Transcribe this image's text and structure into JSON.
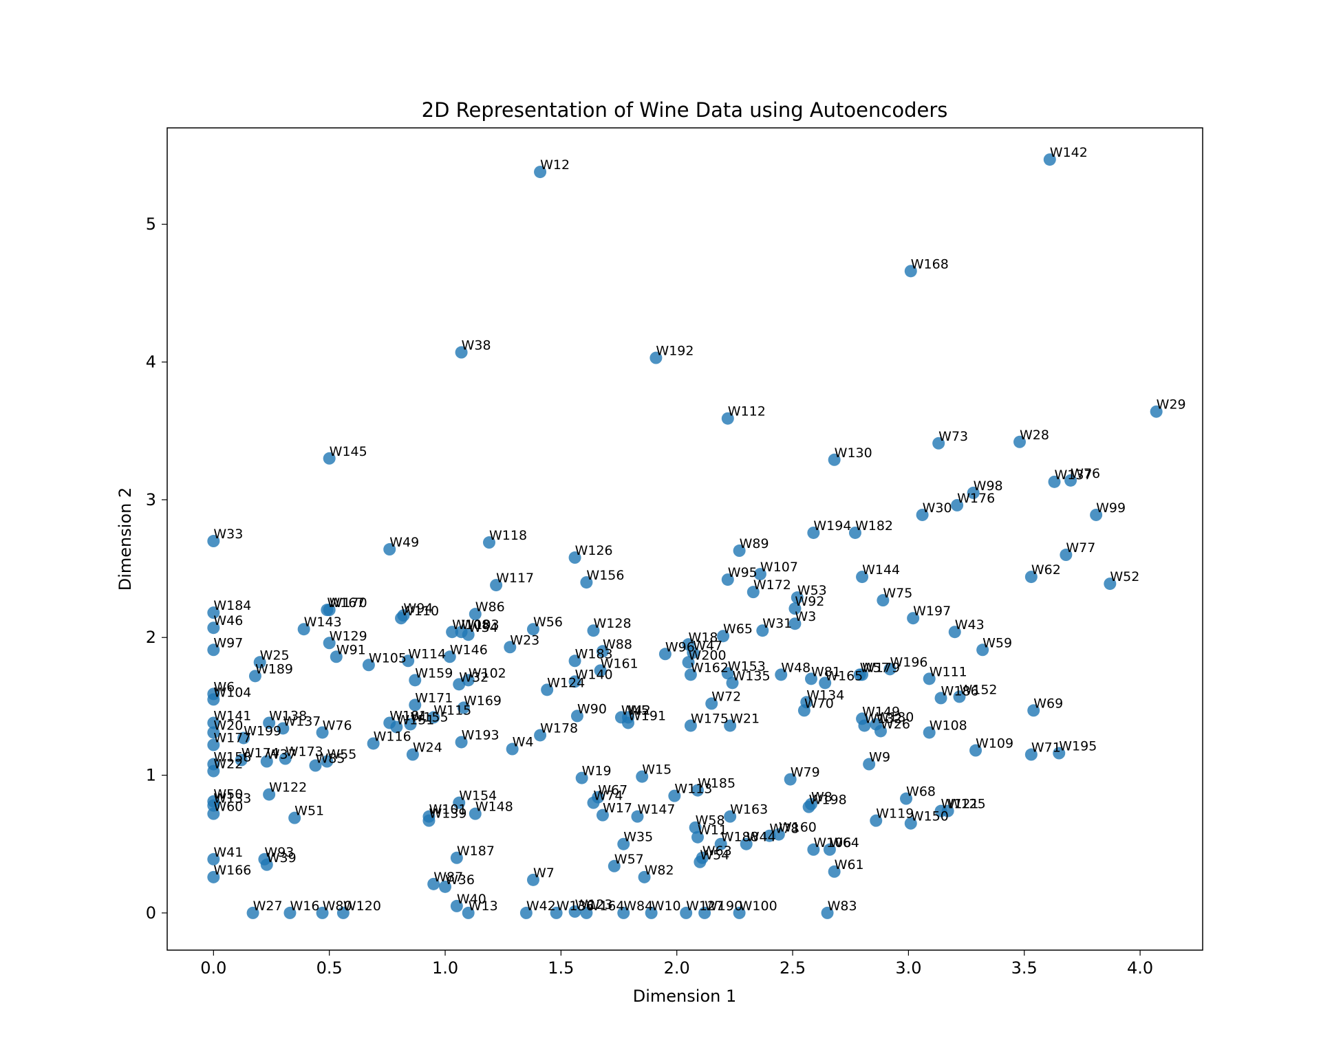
{
  "chart_data": {
    "type": "scatter",
    "title": "2D Representation of Wine Data using Autoencoders",
    "xlabel": "Dimension 1",
    "ylabel": "Dimension 2",
    "xlim": [
      -0.2,
      4.27
    ],
    "ylim": [
      -0.27,
      5.7
    ],
    "xticks": [
      0.0,
      0.5,
      1.0,
      1.5,
      2.0,
      2.5,
      3.0,
      3.5,
      4.0
    ],
    "yticks": [
      0,
      1,
      2,
      3,
      4,
      5
    ],
    "grid": false,
    "point_color": "#1f77b4",
    "points": [
      {
        "label": "W12",
        "x": 1.41,
        "y": 5.38
      },
      {
        "label": "W142",
        "x": 3.61,
        "y": 5.47
      },
      {
        "label": "W168",
        "x": 3.01,
        "y": 4.66
      },
      {
        "label": "W38",
        "x": 1.07,
        "y": 4.07
      },
      {
        "label": "W192",
        "x": 1.91,
        "y": 4.03
      },
      {
        "label": "W29",
        "x": 4.07,
        "y": 3.64
      },
      {
        "label": "W112",
        "x": 2.22,
        "y": 3.59
      },
      {
        "label": "W73",
        "x": 3.13,
        "y": 3.41
      },
      {
        "label": "W28",
        "x": 3.48,
        "y": 3.42
      },
      {
        "label": "W145",
        "x": 0.5,
        "y": 3.3
      },
      {
        "label": "W130",
        "x": 2.68,
        "y": 3.29
      },
      {
        "label": "W137",
        "x": 3.63,
        "y": 3.13
      },
      {
        "label": "W76",
        "x": 3.7,
        "y": 3.14
      },
      {
        "label": "W98",
        "x": 3.28,
        "y": 3.05
      },
      {
        "label": "W176",
        "x": 3.21,
        "y": 2.96
      },
      {
        "label": "W30",
        "x": 3.06,
        "y": 2.89
      },
      {
        "label": "W99",
        "x": 3.81,
        "y": 2.89
      },
      {
        "label": "W194",
        "x": 2.59,
        "y": 2.76
      },
      {
        "label": "W182",
        "x": 2.77,
        "y": 2.76
      },
      {
        "label": "W33",
        "x": 0.0,
        "y": 2.7
      },
      {
        "label": "W118",
        "x": 1.19,
        "y": 2.69
      },
      {
        "label": "W49",
        "x": 0.76,
        "y": 2.64
      },
      {
        "label": "W89",
        "x": 2.27,
        "y": 2.63
      },
      {
        "label": "W77",
        "x": 3.68,
        "y": 2.6
      },
      {
        "label": "W126",
        "x": 1.56,
        "y": 2.58
      },
      {
        "label": "W107",
        "x": 2.36,
        "y": 2.46
      },
      {
        "label": "W144",
        "x": 2.8,
        "y": 2.44
      },
      {
        "label": "W62",
        "x": 3.53,
        "y": 2.44
      },
      {
        "label": "W95",
        "x": 2.22,
        "y": 2.42
      },
      {
        "label": "W156",
        "x": 1.61,
        "y": 2.4
      },
      {
        "label": "W52",
        "x": 3.87,
        "y": 2.39
      },
      {
        "label": "W117",
        "x": 1.22,
        "y": 2.38
      },
      {
        "label": "W172",
        "x": 2.33,
        "y": 2.33
      },
      {
        "label": "W53",
        "x": 2.52,
        "y": 2.29
      },
      {
        "label": "W75",
        "x": 2.89,
        "y": 2.27
      },
      {
        "label": "W92",
        "x": 2.51,
        "y": 2.21
      },
      {
        "label": "W167",
        "x": 0.49,
        "y": 2.2
      },
      {
        "label": "W170",
        "x": 0.5,
        "y": 2.2
      },
      {
        "label": "W184",
        "x": 0.0,
        "y": 2.18
      },
      {
        "label": "W86",
        "x": 1.13,
        "y": 2.17
      },
      {
        "label": "W94",
        "x": 0.82,
        "y": 2.16
      },
      {
        "label": "W110",
        "x": 0.81,
        "y": 2.14
      },
      {
        "label": "W197",
        "x": 3.02,
        "y": 2.14
      },
      {
        "label": "W3",
        "x": 2.51,
        "y": 2.1
      },
      {
        "label": "W46",
        "x": 0.0,
        "y": 2.07
      },
      {
        "label": "W56",
        "x": 1.38,
        "y": 2.06
      },
      {
        "label": "W143",
        "x": 0.39,
        "y": 2.06
      },
      {
        "label": "W31",
        "x": 2.37,
        "y": 2.05
      },
      {
        "label": "W128",
        "x": 1.64,
        "y": 2.05
      },
      {
        "label": "W43",
        "x": 3.2,
        "y": 2.04
      },
      {
        "label": "W108",
        "x": 1.03,
        "y": 2.04
      },
      {
        "label": "W103",
        "x": 1.07,
        "y": 2.04
      },
      {
        "label": "W34",
        "x": 1.1,
        "y": 2.02
      },
      {
        "label": "W65",
        "x": 2.2,
        "y": 2.01
      },
      {
        "label": "W129",
        "x": 0.5,
        "y": 1.96
      },
      {
        "label": "W18",
        "x": 2.05,
        "y": 1.95
      },
      {
        "label": "W23",
        "x": 1.28,
        "y": 1.93
      },
      {
        "label": "W59",
        "x": 3.32,
        "y": 1.91
      },
      {
        "label": "W97",
        "x": 0.0,
        "y": 1.91
      },
      {
        "label": "W88",
        "x": 1.68,
        "y": 1.9
      },
      {
        "label": "W47",
        "x": 2.07,
        "y": 1.89
      },
      {
        "label": "W96",
        "x": 1.95,
        "y": 1.88
      },
      {
        "label": "W91",
        "x": 0.53,
        "y": 1.86
      },
      {
        "label": "W146",
        "x": 1.02,
        "y": 1.86
      },
      {
        "label": "W114",
        "x": 0.84,
        "y": 1.83
      },
      {
        "label": "W183",
        "x": 1.56,
        "y": 1.83
      },
      {
        "label": "W25",
        "x": 0.2,
        "y": 1.82
      },
      {
        "label": "W200",
        "x": 2.05,
        "y": 1.82
      },
      {
        "label": "W105",
        "x": 0.67,
        "y": 1.8
      },
      {
        "label": "W196",
        "x": 2.92,
        "y": 1.77
      },
      {
        "label": "W161",
        "x": 1.67,
        "y": 1.76
      },
      {
        "label": "W153",
        "x": 2.22,
        "y": 1.74
      },
      {
        "label": "W48",
        "x": 2.45,
        "y": 1.73
      },
      {
        "label": "W162",
        "x": 2.06,
        "y": 1.73
      },
      {
        "label": "W57",
        "x": 2.79,
        "y": 1.73
      },
      {
        "label": "W179",
        "x": 2.8,
        "y": 1.73
      },
      {
        "label": "W189",
        "x": 0.18,
        "y": 1.72
      },
      {
        "label": "W81",
        "x": 2.58,
        "y": 1.7
      },
      {
        "label": "W111",
        "x": 3.09,
        "y": 1.7
      },
      {
        "label": "W159",
        "x": 0.87,
        "y": 1.69
      },
      {
        "label": "W102",
        "x": 1.1,
        "y": 1.69
      },
      {
        "label": "W140",
        "x": 1.56,
        "y": 1.68
      },
      {
        "label": "W135",
        "x": 2.24,
        "y": 1.67
      },
      {
        "label": "W165",
        "x": 2.64,
        "y": 1.67
      },
      {
        "label": "W32",
        "x": 1.06,
        "y": 1.66
      },
      {
        "label": "W124",
        "x": 1.44,
        "y": 1.62
      },
      {
        "label": "W6",
        "x": 0.0,
        "y": 1.59
      },
      {
        "label": "W152",
        "x": 3.22,
        "y": 1.57
      },
      {
        "label": "W186",
        "x": 3.14,
        "y": 1.56
      },
      {
        "label": "W104",
        "x": 0.0,
        "y": 1.55
      },
      {
        "label": "W134",
        "x": 2.56,
        "y": 1.53
      },
      {
        "label": "W72",
        "x": 2.15,
        "y": 1.52
      },
      {
        "label": "W171",
        "x": 0.87,
        "y": 1.51
      },
      {
        "label": "W169",
        "x": 1.08,
        "y": 1.49
      },
      {
        "label": "W70",
        "x": 2.55,
        "y": 1.47
      },
      {
        "label": "W69",
        "x": 3.54,
        "y": 1.47
      },
      {
        "label": "W90",
        "x": 1.57,
        "y": 1.43
      },
      {
        "label": "W115",
        "x": 0.95,
        "y": 1.42
      },
      {
        "label": "W42",
        "x": 1.76,
        "y": 1.42
      },
      {
        "label": "W5",
        "x": 1.79,
        "y": 1.42
      },
      {
        "label": "W149",
        "x": 2.8,
        "y": 1.41
      },
      {
        "label": "W191",
        "x": 1.79,
        "y": 1.38
      },
      {
        "label": "W141",
        "x": 0.0,
        "y": 1.38
      },
      {
        "label": "W138",
        "x": 0.24,
        "y": 1.38
      },
      {
        "label": "W181",
        "x": 0.76,
        "y": 1.38
      },
      {
        "label": "W155",
        "x": 0.85,
        "y": 1.37
      },
      {
        "label": "W180",
        "x": 2.86,
        "y": 1.37
      },
      {
        "label": "W132",
        "x": 2.81,
        "y": 1.36
      },
      {
        "label": "W175",
        "x": 2.06,
        "y": 1.36
      },
      {
        "label": "W21",
        "x": 2.23,
        "y": 1.36
      },
      {
        "label": "W151",
        "x": 0.79,
        "y": 1.35
      },
      {
        "label": "W137b",
        "x": 0.3,
        "y": 1.34
      },
      {
        "label": "W26",
        "x": 2.88,
        "y": 1.32
      },
      {
        "label": "W20",
        "x": 0.0,
        "y": 1.31
      },
      {
        "label": "W76b",
        "x": 0.47,
        "y": 1.31
      },
      {
        "label": "W108b",
        "x": 3.09,
        "y": 1.31
      },
      {
        "label": "W178",
        "x": 1.41,
        "y": 1.29
      },
      {
        "label": "W199",
        "x": 0.13,
        "y": 1.27
      },
      {
        "label": "W193",
        "x": 1.07,
        "y": 1.24
      },
      {
        "label": "W116",
        "x": 0.69,
        "y": 1.23
      },
      {
        "label": "W177",
        "x": 0.0,
        "y": 1.22
      },
      {
        "label": "W4",
        "x": 1.29,
        "y": 1.19
      },
      {
        "label": "W109",
        "x": 3.29,
        "y": 1.18
      },
      {
        "label": "W195",
        "x": 3.65,
        "y": 1.16
      },
      {
        "label": "W24",
        "x": 0.86,
        "y": 1.15
      },
      {
        "label": "W71",
        "x": 3.53,
        "y": 1.15
      },
      {
        "label": "W173",
        "x": 0.31,
        "y": 1.12
      },
      {
        "label": "W174",
        "x": 0.12,
        "y": 1.11
      },
      {
        "label": "W37",
        "x": 0.23,
        "y": 1.1
      },
      {
        "label": "W55",
        "x": 0.49,
        "y": 1.1
      },
      {
        "label": "W158",
        "x": 0.0,
        "y": 1.08
      },
      {
        "label": "W9",
        "x": 2.83,
        "y": 1.08
      },
      {
        "label": "W85",
        "x": 0.44,
        "y": 1.07
      },
      {
        "label": "W22",
        "x": 0.0,
        "y": 1.03
      },
      {
        "label": "W15",
        "x": 1.85,
        "y": 0.99
      },
      {
        "label": "W19",
        "x": 1.59,
        "y": 0.98
      },
      {
        "label": "W79",
        "x": 2.49,
        "y": 0.97
      },
      {
        "label": "W185",
        "x": 2.09,
        "y": 0.89
      },
      {
        "label": "W122",
        "x": 0.24,
        "y": 0.86
      },
      {
        "label": "W113",
        "x": 1.99,
        "y": 0.85
      },
      {
        "label": "W67",
        "x": 1.66,
        "y": 0.84
      },
      {
        "label": "W68",
        "x": 2.99,
        "y": 0.83
      },
      {
        "label": "W50",
        "x": 0.0,
        "y": 0.81
      },
      {
        "label": "W154",
        "x": 1.06,
        "y": 0.8
      },
      {
        "label": "W74",
        "x": 1.64,
        "y": 0.8
      },
      {
        "label": "W8",
        "x": 2.58,
        "y": 0.79
      },
      {
        "label": "W133",
        "x": 0.0,
        "y": 0.78
      },
      {
        "label": "W198",
        "x": 2.57,
        "y": 0.77
      },
      {
        "label": "W121",
        "x": 3.14,
        "y": 0.74
      },
      {
        "label": "W125",
        "x": 3.17,
        "y": 0.74
      },
      {
        "label": "W148",
        "x": 1.13,
        "y": 0.72
      },
      {
        "label": "W60",
        "x": 0.0,
        "y": 0.72
      },
      {
        "label": "W17",
        "x": 1.68,
        "y": 0.71
      },
      {
        "label": "W147",
        "x": 1.83,
        "y": 0.7
      },
      {
        "label": "W163",
        "x": 2.23,
        "y": 0.7
      },
      {
        "label": "W101",
        "x": 0.93,
        "y": 0.7
      },
      {
        "label": "W51",
        "x": 0.35,
        "y": 0.69
      },
      {
        "label": "W119",
        "x": 2.86,
        "y": 0.67
      },
      {
        "label": "W139",
        "x": 0.93,
        "y": 0.67
      },
      {
        "label": "W150",
        "x": 3.01,
        "y": 0.65
      },
      {
        "label": "W58",
        "x": 2.08,
        "y": 0.62
      },
      {
        "label": "W160",
        "x": 2.44,
        "y": 0.57
      },
      {
        "label": "W78",
        "x": 2.4,
        "y": 0.56
      },
      {
        "label": "W11",
        "x": 2.09,
        "y": 0.55
      },
      {
        "label": "W188",
        "x": 2.19,
        "y": 0.5
      },
      {
        "label": "W44",
        "x": 2.3,
        "y": 0.5
      },
      {
        "label": "W35",
        "x": 1.77,
        "y": 0.5
      },
      {
        "label": "W106",
        "x": 2.59,
        "y": 0.46
      },
      {
        "label": "W64",
        "x": 2.66,
        "y": 0.46
      },
      {
        "label": "W187",
        "x": 1.05,
        "y": 0.4
      },
      {
        "label": "W63",
        "x": 2.11,
        "y": 0.4
      },
      {
        "label": "W41",
        "x": 0.0,
        "y": 0.39
      },
      {
        "label": "W93",
        "x": 0.22,
        "y": 0.39
      },
      {
        "label": "W54",
        "x": 2.1,
        "y": 0.37
      },
      {
        "label": "W39",
        "x": 0.23,
        "y": 0.35
      },
      {
        "label": "W57b",
        "x": 1.73,
        "y": 0.34
      },
      {
        "label": "W61",
        "x": 2.68,
        "y": 0.3
      },
      {
        "label": "W166",
        "x": 0.0,
        "y": 0.26
      },
      {
        "label": "W82",
        "x": 1.86,
        "y": 0.26
      },
      {
        "label": "W7",
        "x": 1.38,
        "y": 0.24
      },
      {
        "label": "W87",
        "x": 0.95,
        "y": 0.21
      },
      {
        "label": "W36",
        "x": 1.0,
        "y": 0.19
      },
      {
        "label": "W40",
        "x": 1.05,
        "y": 0.05
      },
      {
        "label": "W13",
        "x": 1.1,
        "y": 0.0
      },
      {
        "label": "W27",
        "x": 0.17,
        "y": 0.0
      },
      {
        "label": "W16",
        "x": 0.33,
        "y": 0.0
      },
      {
        "label": "W80",
        "x": 0.47,
        "y": 0.0
      },
      {
        "label": "W120",
        "x": 0.56,
        "y": 0.0
      },
      {
        "label": "W42b",
        "x": 1.35,
        "y": 0.0
      },
      {
        "label": "W123",
        "x": 1.56,
        "y": 0.01
      },
      {
        "label": "W136",
        "x": 1.48,
        "y": 0.0
      },
      {
        "label": "W164",
        "x": 1.61,
        "y": 0.0
      },
      {
        "label": "W84",
        "x": 1.77,
        "y": 0.0
      },
      {
        "label": "W10",
        "x": 1.89,
        "y": 0.0
      },
      {
        "label": "W127",
        "x": 2.04,
        "y": 0.0
      },
      {
        "label": "W190",
        "x": 2.12,
        "y": 0.0
      },
      {
        "label": "W100",
        "x": 2.27,
        "y": 0.0
      },
      {
        "label": "W83",
        "x": 2.65,
        "y": 0.0
      }
    ]
  }
}
